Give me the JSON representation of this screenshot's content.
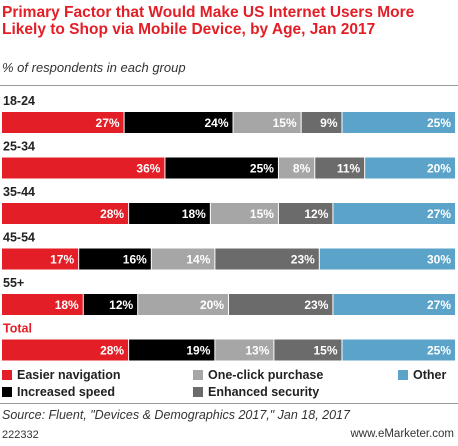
{
  "chart_data": {
    "type": "bar",
    "orientation": "horizontal",
    "stacked": true,
    "title": "Primary Factor that Would Make US Internet Users More Likely to Shop via Mobile Device, by Age, Jan 2017",
    "subtitle": "% of respondents in each group",
    "categories": [
      "18-24",
      "25-34",
      "35-44",
      "45-54",
      "55+",
      "Total"
    ],
    "series": [
      {
        "name": "Easier navigation",
        "color": "#e31e26",
        "values": [
          27,
          36,
          28,
          17,
          18,
          28
        ]
      },
      {
        "name": "Increased speed",
        "color": "#000000",
        "values": [
          24,
          25,
          18,
          16,
          12,
          19
        ]
      },
      {
        "name": "One-click purchase",
        "color": "#a6a6a6",
        "values": [
          15,
          8,
          15,
          14,
          20,
          13
        ]
      },
      {
        "name": "Enhanced security",
        "color": "#6b6b6b",
        "values": [
          9,
          11,
          12,
          23,
          23,
          15
        ]
      },
      {
        "name": "Other",
        "color": "#5ba3c9",
        "values": [
          25,
          20,
          27,
          30,
          27,
          25
        ]
      }
    ],
    "value_suffix": "%",
    "legend_position": "bottom"
  },
  "source": "Source: Fluent, \"Devices & Demographics 2017,\" Jan 18, 2017",
  "chart_id": "222332",
  "logo": "www.eMarketer.com"
}
